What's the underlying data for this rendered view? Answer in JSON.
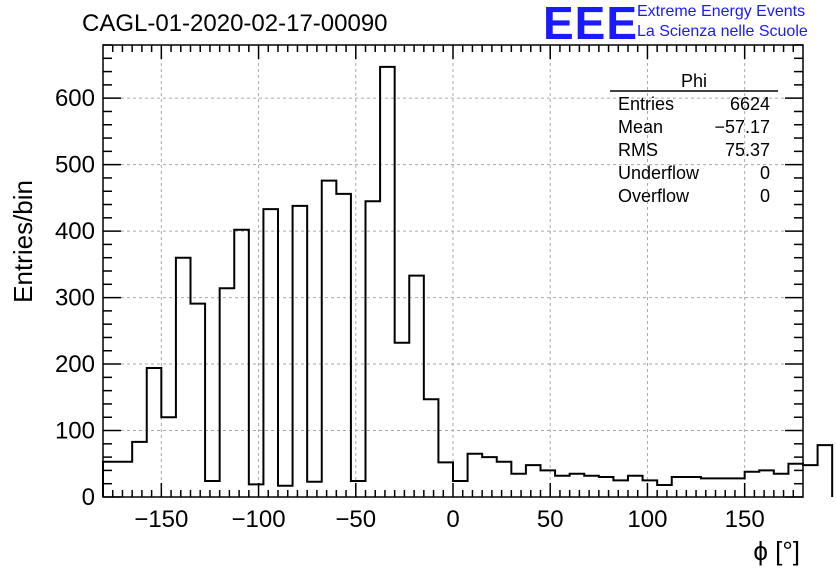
{
  "header": {
    "title": "CAGL-01-2020-02-17-00090",
    "logo_text": "EEE",
    "logo_line1": "Extreme Energy Events",
    "logo_line2": "La Scienza nelle Scuole"
  },
  "stats_box": {
    "name": "Phi",
    "rows": [
      {
        "label": "Entries",
        "value": "6624"
      },
      {
        "label": "Mean",
        "value": "−57.17"
      },
      {
        "label": "RMS",
        "value": "75.37"
      },
      {
        "label": "Underflow",
        "value": "0"
      },
      {
        "label": "Overflow",
        "value": "0"
      }
    ]
  },
  "chart_data": {
    "type": "bar",
    "style": "step-histogram",
    "xlabel": "ϕ [°]",
    "ylabel": "Entries/bin",
    "xlim": [
      -180,
      180
    ],
    "ylim": [
      0,
      680
    ],
    "grid": true,
    "bin_width": 7.5,
    "xticks": [
      -150,
      -100,
      -50,
      0,
      50,
      100,
      150
    ],
    "xtick_labels": [
      "−150",
      "−100",
      "−50",
      "0",
      "50",
      "100",
      "150"
    ],
    "yticks": [
      0,
      100,
      200,
      300,
      400,
      500,
      600
    ],
    "ytick_labels": [
      "0",
      "100",
      "200",
      "300",
      "400",
      "500",
      "600"
    ],
    "bin_edges_start": -180,
    "values": [
      53,
      53,
      83,
      194,
      120,
      360,
      291,
      24,
      314,
      402,
      19,
      433,
      17,
      438,
      23,
      476,
      456,
      24,
      445,
      647,
      232,
      333,
      147,
      52,
      24,
      65,
      60,
      53,
      35,
      48,
      40,
      32,
      35,
      32,
      30,
      25,
      32,
      25,
      18,
      30,
      30,
      28,
      28,
      28,
      38,
      40,
      35,
      50,
      48,
      78
    ]
  }
}
